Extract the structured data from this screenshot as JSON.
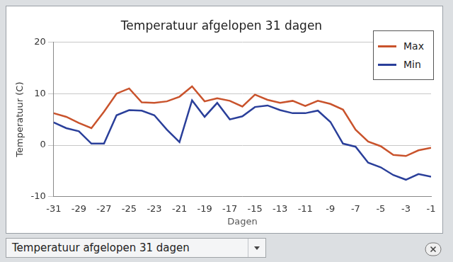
{
  "chart_data": {
    "type": "line",
    "title": "Temperatuur afgelopen 31 dagen",
    "x_label": "Dagen",
    "y_label": "Temperatuur (C)",
    "x": [
      -31,
      -30,
      -29,
      -28,
      -27,
      -26,
      -25,
      -24,
      -23,
      -22,
      -21,
      -20,
      -19,
      -18,
      -17,
      -16,
      -15,
      -14,
      -13,
      -12,
      -11,
      -10,
      -9,
      -8,
      -7,
      -6,
      -5,
      -4,
      -3,
      -2,
      -1
    ],
    "series": [
      {
        "name": "Max",
        "color": "#c9532c",
        "values": [
          6.2,
          5.5,
          4.3,
          3.3,
          6.5,
          10,
          11,
          8.3,
          8.2,
          8.5,
          9.4,
          11.4,
          8.5,
          9.1,
          8.6,
          7.5,
          9.8,
          8.8,
          8.2,
          8.6,
          7.6,
          8.6,
          8,
          6.9,
          3,
          0.7,
          -0.2,
          -1.9,
          -2.1,
          -1,
          -0.5
        ]
      },
      {
        "name": "Min",
        "color": "#2a3f9a",
        "values": [
          4.4,
          3.3,
          2.7,
          0.3,
          0.3,
          5.8,
          6.8,
          6.7,
          5.8,
          3,
          0.6,
          8.7,
          5.5,
          8.2,
          5,
          5.6,
          7.4,
          7.7,
          6.8,
          6.2,
          6.2,
          6.7,
          4.5,
          0.3,
          -0.3,
          -3.4,
          -4.3,
          -5.8,
          -6.7,
          -5.6,
          -6.1
        ]
      }
    ],
    "xlim": [
      -31,
      -1
    ],
    "xticks": [
      -31,
      -29,
      -27,
      -25,
      -23,
      -21,
      -19,
      -17,
      -15,
      -13,
      -11,
      -9,
      -7,
      -5,
      -3,
      -1
    ],
    "ylim": [
      -10,
      20
    ],
    "yticks": [
      -10,
      0,
      10,
      20
    ],
    "grid": true,
    "legend": "top-right"
  },
  "dropdown": {
    "selected": "Temperatuur afgelopen 31 dagen"
  }
}
